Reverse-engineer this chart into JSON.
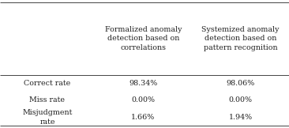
{
  "col_headers": [
    "Formalized anomaly\ndetection based on\ncorrelations",
    "Systemized anomaly\ndetection based on\npattern recognition"
  ],
  "row_headers": [
    "Correct rate",
    "Miss rate",
    "Misjudgment\nrate"
  ],
  "cell_data": [
    [
      "98.34%",
      "98.06%"
    ],
    [
      "0.00%",
      "0.00%"
    ],
    [
      "1.66%",
      "1.94%"
    ]
  ],
  "background_color": "#ffffff",
  "line_color": "#444444",
  "text_color": "#222222",
  "font_size": 6.8,
  "fig_width": 3.66,
  "fig_height": 1.62,
  "dpi": 100
}
